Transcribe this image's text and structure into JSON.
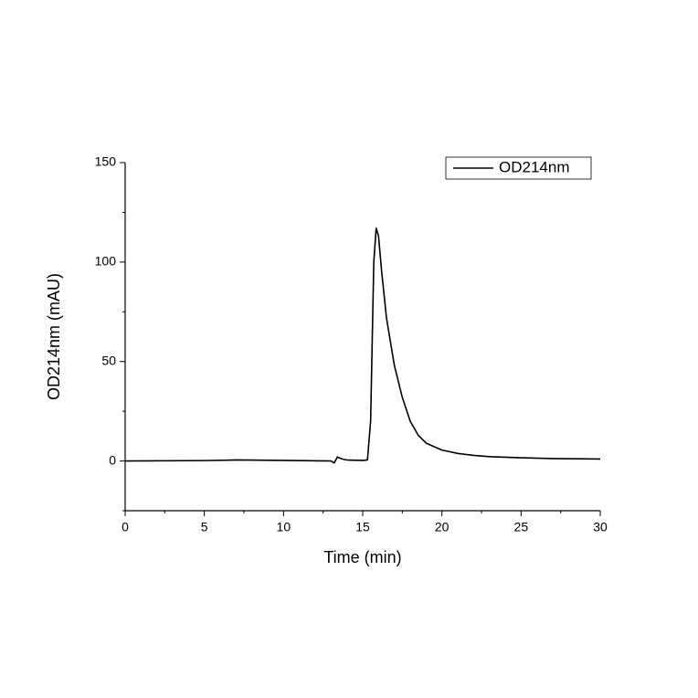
{
  "chart_data": {
    "type": "line",
    "x_label": "Time (min)",
    "y_label": "OD214nm (mAU)",
    "x": [
      0,
      5,
      7,
      10,
      13,
      13.2,
      13.4,
      13.7,
      14,
      15,
      15.3,
      15.5,
      15.6,
      15.7,
      15.85,
      16,
      16.2,
      16.5,
      17,
      17.5,
      18,
      18.5,
      19,
      20,
      21,
      22,
      23,
      25,
      27,
      30
    ],
    "series": [
      {
        "name": "OD214nm",
        "color": "#000000",
        "values": [
          0,
          0.2,
          0.5,
          0.3,
          0,
          -1,
          2,
          1,
          0.5,
          0.3,
          0.5,
          20,
          60,
          100,
          117,
          113,
          95,
          72,
          48,
          32,
          20,
          13,
          9,
          5.5,
          3.8,
          2.8,
          2.2,
          1.6,
          1.2,
          1
        ]
      }
    ],
    "xlim": [
      0,
      30
    ],
    "xticks": [
      0,
      5,
      10,
      15,
      20,
      25,
      30
    ],
    "xminorticks": [
      2.5,
      7.5,
      12.5,
      17.5,
      22.5,
      27.5
    ],
    "ylim": [
      -25,
      150
    ],
    "yticks": [
      0,
      50,
      100,
      150
    ],
    "yminorticks": [
      -25,
      25,
      75,
      125
    ],
    "grid": false,
    "legend": "upper right"
  }
}
